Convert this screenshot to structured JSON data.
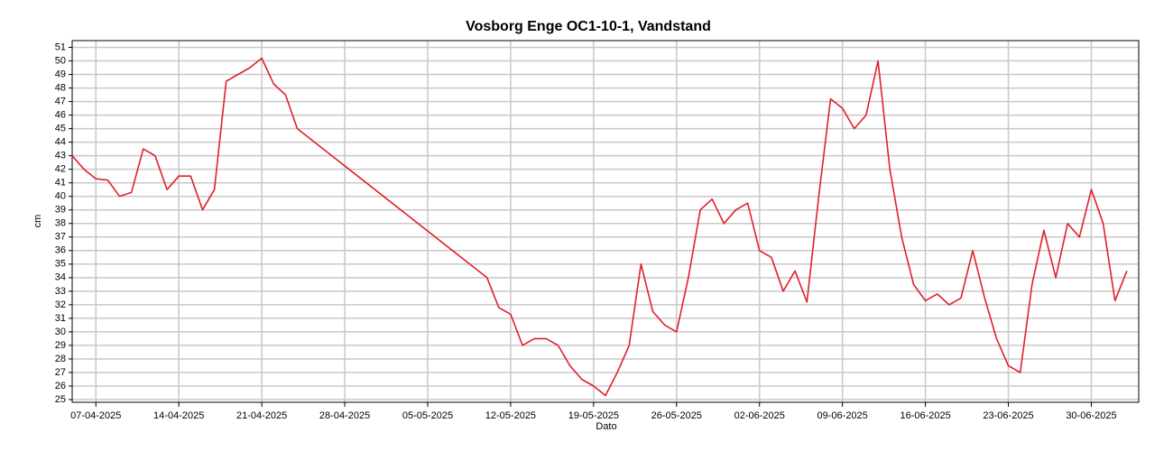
{
  "chart_data": {
    "type": "line",
    "title": "Vosborg Enge OC1-10-1, Vandstand",
    "x_label": "Dato",
    "y_label": "cm",
    "x": [
      "2025-04-05",
      "2025-04-06",
      "2025-04-07",
      "2025-04-08",
      "2025-04-09",
      "2025-04-10",
      "2025-04-11",
      "2025-04-12",
      "2025-04-13",
      "2025-04-14",
      "2025-04-15",
      "2025-04-16",
      "2025-04-17",
      "2025-04-18",
      "2025-04-19",
      "2025-04-20",
      "2025-04-21",
      "2025-04-22",
      "2025-04-23",
      "2025-04-24",
      "2025-05-10",
      "2025-05-11",
      "2025-05-12",
      "2025-05-13",
      "2025-05-14",
      "2025-05-15",
      "2025-05-16",
      "2025-05-17",
      "2025-05-18",
      "2025-05-19",
      "2025-05-20",
      "2025-05-21",
      "2025-05-22",
      "2025-05-23",
      "2025-05-24",
      "2025-05-25",
      "2025-05-26",
      "2025-05-27",
      "2025-05-28",
      "2025-05-29",
      "2025-05-30",
      "2025-05-31",
      "2025-06-01",
      "2025-06-02",
      "2025-06-03",
      "2025-06-04",
      "2025-06-05",
      "2025-06-06",
      "2025-06-07",
      "2025-06-08",
      "2025-06-09",
      "2025-06-10",
      "2025-06-11",
      "2025-06-12",
      "2025-06-13",
      "2025-06-14",
      "2025-06-15",
      "2025-06-16",
      "2025-06-17",
      "2025-06-18",
      "2025-06-19",
      "2025-06-20",
      "2025-06-21",
      "2025-06-22",
      "2025-06-23",
      "2025-06-24",
      "2025-06-25",
      "2025-06-26",
      "2025-06-27",
      "2025-06-28",
      "2025-06-29",
      "2025-06-30",
      "2025-07-01",
      "2025-07-02",
      "2025-07-03"
    ],
    "series": [
      {
        "name": "Vandstand",
        "color": "#e0202a",
        "values": [
          43,
          42,
          41.3,
          41.2,
          40,
          40.3,
          43.5,
          43,
          40.5,
          41.5,
          41.5,
          39,
          40.5,
          48.5,
          49,
          49.5,
          50.2,
          48.3,
          47.5,
          45,
          34,
          31.8,
          31.3,
          29,
          29.5,
          29.5,
          29,
          27.5,
          26.5,
          26,
          25.3,
          27,
          29,
          35,
          31.5,
          30.5,
          30,
          34,
          39,
          39.8,
          38,
          39,
          39.5,
          36,
          35.5,
          33,
          34.5,
          32.2,
          40,
          47.2,
          46.5,
          45,
          46,
          50,
          42,
          37,
          33.5,
          32.3,
          32.8,
          32,
          32.5,
          36,
          32.5,
          29.5,
          27.5,
          27,
          33.5,
          37.5,
          34,
          38,
          37,
          40.5,
          38,
          32.3,
          34.5
        ]
      }
    ],
    "xlim": [
      "2025-04-05",
      "2025-07-04"
    ],
    "xticks": [
      {
        "value": "2025-04-07",
        "label": "07-04-2025"
      },
      {
        "value": "2025-04-14",
        "label": "14-04-2025"
      },
      {
        "value": "2025-04-21",
        "label": "21-04-2025"
      },
      {
        "value": "2025-04-28",
        "label": "28-04-2025"
      },
      {
        "value": "2025-05-05",
        "label": "05-05-2025"
      },
      {
        "value": "2025-05-12",
        "label": "12-05-2025"
      },
      {
        "value": "2025-05-19",
        "label": "19-05-2025"
      },
      {
        "value": "2025-05-26",
        "label": "26-05-2025"
      },
      {
        "value": "2025-06-02",
        "label": "02-06-2025"
      },
      {
        "value": "2025-06-09",
        "label": "09-06-2025"
      },
      {
        "value": "2025-06-16",
        "label": "16-06-2025"
      },
      {
        "value": "2025-06-23",
        "label": "23-06-2025"
      },
      {
        "value": "2025-06-30",
        "label": "30-06-2025"
      }
    ],
    "ylim": [
      24.8,
      51.5
    ],
    "yticks": [
      25,
      26,
      27,
      28,
      29,
      30,
      31,
      32,
      33,
      34,
      35,
      36,
      37,
      38,
      39,
      40,
      41,
      42,
      43,
      44,
      45,
      46,
      47,
      48,
      49,
      50,
      51
    ],
    "grid": true
  }
}
